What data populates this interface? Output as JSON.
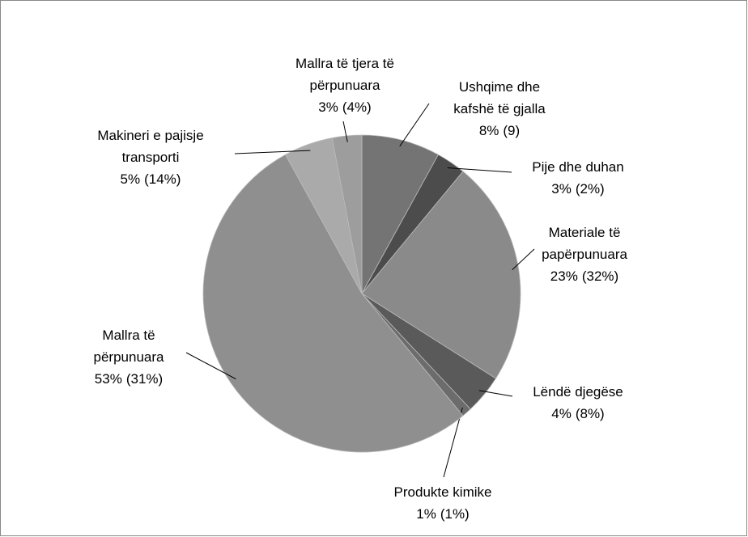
{
  "chart_data": {
    "type": "pie",
    "categories": [
      "Ushqime dhe\nkafshë të gjalla",
      "Pije dhe duhan",
      "Materiale të\npapërpunuara",
      "Lëndë djegëse",
      "Produkte kimike",
      "Mallra të\npërpunuara",
      "Makineri e pajisje\ntransporti",
      "Mallra të tjera të\npërpunuara"
    ],
    "values": [
      8,
      3,
      23,
      4,
      1,
      53,
      5,
      3
    ],
    "value_labels": [
      "8%",
      "3%",
      "23%",
      "4%",
      "1%",
      "53%",
      "5%",
      "3%"
    ],
    "secondary_values": [
      9,
      2,
      32,
      8,
      1,
      31,
      14,
      4
    ],
    "secondary_value_labels": [
      "(9)",
      "(2%)",
      "(32%)",
      "(8%)",
      "(1%)",
      "(31%)",
      "(14%)",
      "(4%)"
    ],
    "colors": [
      "#747474",
      "#4c4c4c",
      "#8a8a8a",
      "#5a5a5a",
      "#6c6c6c",
      "#8f8f8f",
      "#aaaaaa",
      "#9d9d9d"
    ]
  }
}
